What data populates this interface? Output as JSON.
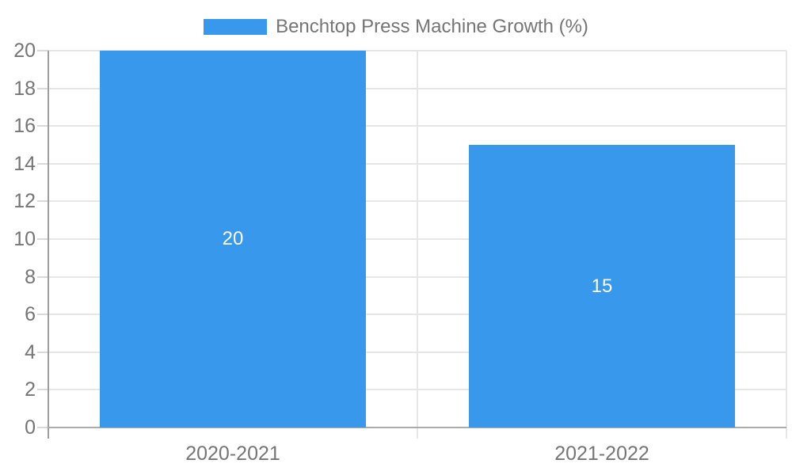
{
  "legend": {
    "label": "Benchtop Press Machine Growth (%)"
  },
  "chart_data": {
    "type": "bar",
    "categories": [
      "2020-2021",
      "2021-2022"
    ],
    "series": [
      {
        "name": "Benchtop Press Machine Growth (%)",
        "values": [
          20,
          15
        ]
      }
    ],
    "data_labels": [
      "20",
      "15"
    ],
    "ylim": [
      0,
      20
    ],
    "yticks": [
      0,
      2,
      4,
      6,
      8,
      10,
      12,
      14,
      16,
      18,
      20
    ],
    "grid": true,
    "legend_position": "top-center",
    "colors": {
      "bar": "#3899EC",
      "axis_text": "#757575",
      "bar_label_text": "#FFFFFF",
      "gridline": "#E6E6E6",
      "tick": "#D9D9D9",
      "y_axis_line": "#9E9E9E",
      "baseline": "#ABABAB",
      "background": "#FFFFFF"
    }
  }
}
